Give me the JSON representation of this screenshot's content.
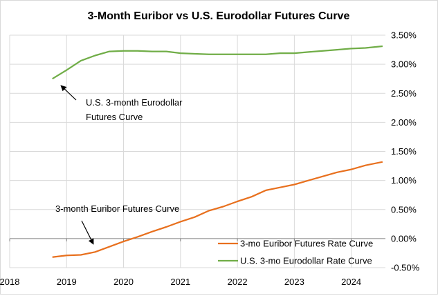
{
  "chart_data": {
    "type": "line",
    "title": "3-Month Euribor vs U.S. Eurodollar Futures Curve",
    "xlabel": "",
    "ylabel": "",
    "x_ticks": [
      "2018",
      "2019",
      "2020",
      "2021",
      "2022",
      "2023",
      "2024"
    ],
    "y_ticks": [
      "3.50%",
      "3.00%",
      "2.50%",
      "2.00%",
      "1.50%",
      "1.00%",
      "0.50%",
      "0.00%",
      "-0.50%"
    ],
    "xlim": [
      2018.0,
      2024.6
    ],
    "ylim": [
      -0.5,
      3.5
    ],
    "y_axis_side": "right",
    "grid": {
      "horizontal": true,
      "vertical": true
    },
    "legend_position": "bottom-right",
    "colors": {
      "euribor": "#E8701E",
      "eurodollar": "#70AD47",
      "grid": "#D9D9D9",
      "axis": "#808080"
    },
    "series": [
      {
        "name": "3-mo Euribor Futures Rate Curve",
        "x": [
          2018.75,
          2019.0,
          2019.25,
          2019.5,
          2019.75,
          2020.0,
          2020.25,
          2020.5,
          2020.75,
          2021.0,
          2021.25,
          2021.5,
          2021.75,
          2022.0,
          2022.25,
          2022.5,
          2022.75,
          2023.0,
          2023.25,
          2023.5,
          2023.75,
          2024.0,
          2024.25,
          2024.55
        ],
        "values": [
          -0.32,
          -0.29,
          -0.28,
          -0.23,
          -0.14,
          -0.05,
          0.03,
          0.12,
          0.2,
          0.29,
          0.37,
          0.48,
          0.55,
          0.64,
          0.72,
          0.83,
          0.88,
          0.93,
          1.0,
          1.07,
          1.14,
          1.19,
          1.26,
          1.32
        ]
      },
      {
        "name": "U.S. 3-mo Eurodollar Rate Curve",
        "x": [
          2018.75,
          2019.0,
          2019.25,
          2019.5,
          2019.75,
          2020.0,
          2020.25,
          2020.5,
          2020.75,
          2021.0,
          2021.25,
          2021.5,
          2021.75,
          2022.0,
          2022.25,
          2022.5,
          2022.75,
          2023.0,
          2023.25,
          2023.5,
          2023.75,
          2024.0,
          2024.25,
          2024.55
        ],
        "values": [
          2.75,
          2.9,
          3.06,
          3.15,
          3.22,
          3.23,
          3.23,
          3.22,
          3.22,
          3.19,
          3.18,
          3.17,
          3.17,
          3.17,
          3.17,
          3.17,
          3.19,
          3.19,
          3.21,
          3.23,
          3.25,
          3.27,
          3.28,
          3.31
        ]
      }
    ],
    "annotations": [
      {
        "lines": [
          "U.S. 3-month  Eurodollar",
          "Futures Curve"
        ],
        "points_to": "U.S. 3-mo Eurodollar Rate Curve"
      },
      {
        "lines": [
          "3-month  Euribor Futures Curve"
        ],
        "points_to": "3-mo Euribor Futures Rate Curve"
      }
    ]
  }
}
